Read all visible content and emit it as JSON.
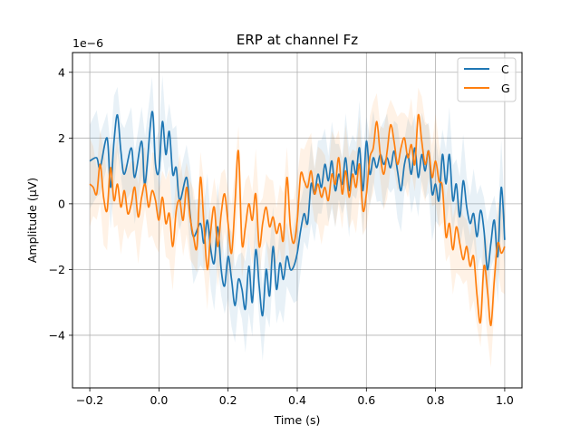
{
  "chart_data": {
    "type": "line",
    "title": "ERP at channel Fz",
    "xlabel": "Time (s)",
    "ylabel": "Amplitude (µV)",
    "y_scale_label": "1e−6",
    "xlim": [
      -0.25,
      1.05
    ],
    "ylim": [
      -5.6,
      4.6
    ],
    "x_ticks": [
      -0.2,
      0.0,
      0.2,
      0.4,
      0.6,
      0.8,
      1.0
    ],
    "x_tick_labels": [
      "−0.2",
      "0.0",
      "0.2",
      "0.4",
      "0.6",
      "0.8",
      "1.0"
    ],
    "y_ticks": [
      -4,
      -2,
      0,
      2,
      4
    ],
    "y_tick_labels": [
      "−4",
      "−2",
      "0",
      "2",
      "4"
    ],
    "grid": true,
    "legend_placement": "top-right",
    "series": [
      {
        "name": "C",
        "color": "#1f77b4",
        "points": [
          [
            -0.2,
            1.3
          ],
          [
            -0.18,
            1.4
          ],
          [
            -0.17,
            1.1
          ],
          [
            -0.15,
            2.0
          ],
          [
            -0.14,
            0.5
          ],
          [
            -0.13,
            1.9
          ],
          [
            -0.12,
            2.7
          ],
          [
            -0.11,
            1.6
          ],
          [
            -0.1,
            0.9
          ],
          [
            -0.08,
            1.7
          ],
          [
            -0.07,
            0.8
          ],
          [
            -0.05,
            1.9
          ],
          [
            -0.04,
            0.6
          ],
          [
            -0.02,
            2.8
          ],
          [
            -0.01,
            1.2
          ],
          [
            0.0,
            1.0
          ],
          [
            0.01,
            2.5
          ],
          [
            0.02,
            1.5
          ],
          [
            0.03,
            2.2
          ],
          [
            0.04,
            0.9
          ],
          [
            0.05,
            1.1
          ],
          [
            0.06,
            0.1
          ],
          [
            0.08,
            0.8
          ],
          [
            0.09,
            -0.3
          ],
          [
            0.1,
            -1.0
          ],
          [
            0.12,
            -0.6
          ],
          [
            0.13,
            -1.2
          ],
          [
            0.14,
            -0.5
          ],
          [
            0.15,
            -1.4
          ],
          [
            0.16,
            -1.8
          ],
          [
            0.17,
            -0.7
          ],
          [
            0.18,
            -2.0
          ],
          [
            0.19,
            -2.5
          ],
          [
            0.2,
            -1.6
          ],
          [
            0.21,
            -2.3
          ],
          [
            0.22,
            -3.1
          ],
          [
            0.23,
            -2.3
          ],
          [
            0.24,
            -2.6
          ],
          [
            0.25,
            -3.2
          ],
          [
            0.26,
            -1.9
          ],
          [
            0.27,
            -3.0
          ],
          [
            0.28,
            -1.4
          ],
          [
            0.29,
            -2.5
          ],
          [
            0.3,
            -3.4
          ],
          [
            0.31,
            -2.0
          ],
          [
            0.32,
            -2.8
          ],
          [
            0.33,
            -1.3
          ],
          [
            0.34,
            -2.6
          ],
          [
            0.35,
            -1.8
          ],
          [
            0.36,
            -2.3
          ],
          [
            0.37,
            -1.6
          ],
          [
            0.38,
            -2.0
          ],
          [
            0.39,
            -1.9
          ],
          [
            0.4,
            -1.5
          ],
          [
            0.41,
            -0.8
          ],
          [
            0.42,
            -0.3
          ],
          [
            0.43,
            -0.6
          ],
          [
            0.44,
            0.6
          ],
          [
            0.45,
            0.3
          ],
          [
            0.46,
            0.9
          ],
          [
            0.47,
            0.5
          ],
          [
            0.48,
            1.2
          ],
          [
            0.49,
            0.7
          ],
          [
            0.5,
            1.3
          ],
          [
            0.51,
            0.4
          ],
          [
            0.52,
            0.9
          ],
          [
            0.53,
            0.6
          ],
          [
            0.54,
            1.4
          ],
          [
            0.55,
            0.4
          ],
          [
            0.56,
            1.3
          ],
          [
            0.57,
            0.9
          ],
          [
            0.58,
            1.7
          ],
          [
            0.59,
            0.4
          ],
          [
            0.6,
            1.9
          ],
          [
            0.61,
            0.9
          ],
          [
            0.62,
            1.4
          ],
          [
            0.63,
            1.1
          ],
          [
            0.64,
            1.5
          ],
          [
            0.65,
            1.2
          ],
          [
            0.66,
            1.4
          ],
          [
            0.67,
            1.1
          ],
          [
            0.68,
            1.6
          ],
          [
            0.69,
            1.0
          ],
          [
            0.7,
            0.4
          ],
          [
            0.71,
            1.2
          ],
          [
            0.72,
            1.5
          ],
          [
            0.73,
            0.9
          ],
          [
            0.74,
            1.7
          ],
          [
            0.75,
            0.8
          ],
          [
            0.76,
            1.5
          ],
          [
            0.77,
            1.0
          ],
          [
            0.78,
            1.6
          ],
          [
            0.79,
            0.3
          ],
          [
            0.8,
            0.6
          ],
          [
            0.81,
            0.1
          ],
          [
            0.82,
            1.5
          ],
          [
            0.83,
            0.6
          ],
          [
            0.84,
            1.5
          ],
          [
            0.85,
            0.1
          ],
          [
            0.86,
            0.6
          ],
          [
            0.87,
            -0.4
          ],
          [
            0.88,
            0.7
          ],
          [
            0.89,
            -0.1
          ],
          [
            0.9,
            -0.6
          ],
          [
            0.91,
            -0.3
          ],
          [
            0.92,
            -1.0
          ],
          [
            0.93,
            -0.2
          ],
          [
            0.94,
            -0.8
          ],
          [
            0.95,
            -2.0
          ],
          [
            0.96,
            -1.2
          ],
          [
            0.97,
            -0.5
          ],
          [
            0.98,
            -1.6
          ],
          [
            0.99,
            0.5
          ],
          [
            1.0,
            -1.1
          ]
        ]
      },
      {
        "name": "G",
        "color": "#ff7f0e",
        "points": [
          [
            -0.2,
            0.6
          ],
          [
            -0.19,
            0.5
          ],
          [
            -0.18,
            0.3
          ],
          [
            -0.17,
            1.2
          ],
          [
            -0.16,
            0.2
          ],
          [
            -0.15,
            -0.2
          ],
          [
            -0.14,
            1.1
          ],
          [
            -0.13,
            0.1
          ],
          [
            -0.12,
            0.6
          ],
          [
            -0.11,
            -0.1
          ],
          [
            -0.1,
            0.4
          ],
          [
            -0.09,
            -0.3
          ],
          [
            -0.08,
            0.0
          ],
          [
            -0.07,
            0.5
          ],
          [
            -0.06,
            -0.4
          ],
          [
            -0.05,
            0.2
          ],
          [
            -0.04,
            0.6
          ],
          [
            -0.03,
            -0.1
          ],
          [
            -0.02,
            0.4
          ],
          [
            -0.01,
            0.1
          ],
          [
            0.0,
            -0.5
          ],
          [
            0.01,
            0.2
          ],
          [
            0.02,
            -0.6
          ],
          [
            0.03,
            -0.3
          ],
          [
            0.04,
            -1.3
          ],
          [
            0.05,
            -0.2
          ],
          [
            0.06,
            0.1
          ],
          [
            0.07,
            -0.5
          ],
          [
            0.08,
            0.5
          ],
          [
            0.09,
            -0.4
          ],
          [
            0.1,
            -1.0
          ],
          [
            0.11,
            -1.3
          ],
          [
            0.12,
            0.8
          ],
          [
            0.13,
            -0.6
          ],
          [
            0.14,
            -2.0
          ],
          [
            0.15,
            -0.8
          ],
          [
            0.16,
            -0.1
          ],
          [
            0.17,
            -1.3
          ],
          [
            0.18,
            -0.3
          ],
          [
            0.19,
            0.3
          ],
          [
            0.2,
            -0.6
          ],
          [
            0.21,
            -1.5
          ],
          [
            0.22,
            0.0
          ],
          [
            0.23,
            1.6
          ],
          [
            0.24,
            -1.2
          ],
          [
            0.25,
            -0.7
          ],
          [
            0.26,
            0.0
          ],
          [
            0.27,
            -0.5
          ],
          [
            0.28,
            0.3
          ],
          [
            0.29,
            -1.3
          ],
          [
            0.3,
            -0.6
          ],
          [
            0.31,
            -0.1
          ],
          [
            0.32,
            -0.7
          ],
          [
            0.33,
            -0.4
          ],
          [
            0.34,
            -0.9
          ],
          [
            0.35,
            -0.6
          ],
          [
            0.36,
            -1.1
          ],
          [
            0.37,
            0.8
          ],
          [
            0.38,
            -0.7
          ],
          [
            0.39,
            -1.2
          ],
          [
            0.4,
            -0.5
          ],
          [
            0.41,
            0.9
          ],
          [
            0.42,
            0.7
          ],
          [
            0.43,
            0.5
          ],
          [
            0.44,
            1.0
          ],
          [
            0.45,
            0.3
          ],
          [
            0.46,
            0.6
          ],
          [
            0.47,
            0.2
          ],
          [
            0.48,
            0.5
          ],
          [
            0.49,
            0.1
          ],
          [
            0.5,
            0.9
          ],
          [
            0.51,
            0.6
          ],
          [
            0.52,
            1.4
          ],
          [
            0.53,
            0.3
          ],
          [
            0.54,
            1.0
          ],
          [
            0.55,
            0.2
          ],
          [
            0.56,
            0.9
          ],
          [
            0.57,
            0.5
          ],
          [
            0.58,
            1.2
          ],
          [
            0.59,
            -0.2
          ],
          [
            0.6,
            0.3
          ],
          [
            0.61,
            1.4
          ],
          [
            0.62,
            1.7
          ],
          [
            0.63,
            2.5
          ],
          [
            0.64,
            1.5
          ],
          [
            0.65,
            0.9
          ],
          [
            0.66,
            1.6
          ],
          [
            0.67,
            2.4
          ],
          [
            0.68,
            1.9
          ],
          [
            0.69,
            1.2
          ],
          [
            0.7,
            1.7
          ],
          [
            0.71,
            2.0
          ],
          [
            0.72,
            1.4
          ],
          [
            0.73,
            1.8
          ],
          [
            0.74,
            1.2
          ],
          [
            0.75,
            2.7
          ],
          [
            0.76,
            1.9
          ],
          [
            0.77,
            1.2
          ],
          [
            0.78,
            1.6
          ],
          [
            0.79,
            0.8
          ],
          [
            0.8,
            1.3
          ],
          [
            0.81,
            0.7
          ],
          [
            0.82,
            0.5
          ],
          [
            0.83,
            -1.0
          ],
          [
            0.84,
            -0.6
          ],
          [
            0.85,
            -1.4
          ],
          [
            0.86,
            -0.7
          ],
          [
            0.87,
            -1.2
          ],
          [
            0.88,
            -1.7
          ],
          [
            0.89,
            -1.3
          ],
          [
            0.9,
            -1.9
          ],
          [
            0.91,
            -1.6
          ],
          [
            0.92,
            -2.8
          ],
          [
            0.93,
            -3.6
          ],
          [
            0.94,
            -1.9
          ],
          [
            0.95,
            -2.6
          ],
          [
            0.96,
            -3.7
          ],
          [
            0.97,
            -2.3
          ],
          [
            0.98,
            -1.2
          ],
          [
            0.99,
            -1.5
          ],
          [
            1.0,
            -1.3
          ]
        ]
      }
    ]
  }
}
